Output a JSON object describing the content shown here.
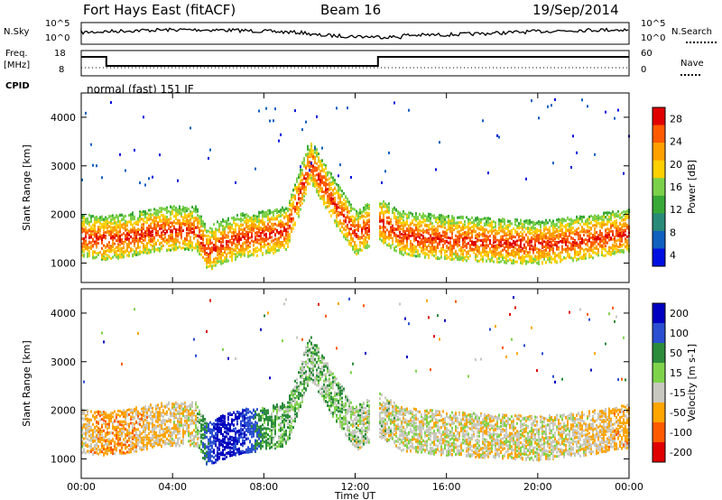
{
  "header": {
    "station": "Fort Hays East (fitACF)",
    "beam": "Beam 16",
    "date": "19/Sep/2014"
  },
  "top_panels": {
    "nsky_label": "N.Sky",
    "nsky_ticks": [
      "10^5",
      "10^0"
    ],
    "nsearch_label": "N.Search",
    "nsearch_ticks": [
      "10^5",
      "10^0"
    ],
    "freq_label": "Freq.",
    "freq_unit": "[MHz]",
    "freq_ticks": [
      "18",
      "8"
    ],
    "nave_label": "Nave",
    "nave_ticks": [
      "60",
      "0"
    ],
    "cpid_label": "CPID",
    "cpid_text": "normal (fast) 151 IF"
  },
  "chart_data": [
    {
      "type": "heatmap",
      "title": "",
      "ylabel": "Slant Range [km]",
      "xlabel": "Time UT",
      "x_ticks": [
        "00:00",
        "04:00",
        "08:00",
        "12:00",
        "16:00",
        "20:00",
        "00:00"
      ],
      "y_ticks": [
        1000,
        2000,
        3000,
        4000
      ],
      "ylim": [
        600,
        4500
      ],
      "colorbar_label": "Power [dB]",
      "colorbar_ticks": [
        28,
        24,
        20,
        16,
        12,
        8,
        4
      ],
      "colorscale": [
        "#e00000",
        "#ff5a00",
        "#ffa000",
        "#ffd000",
        "#7cd14a",
        "#38a838",
        "#2a8a78",
        "#1060c0",
        "#0010e0"
      ],
      "series": [
        {
          "x": [
            0,
            1,
            2,
            3,
            4,
            5,
            5.5,
            6,
            7,
            8,
            9,
            10,
            10.5,
            11,
            12,
            13,
            14,
            16,
            18,
            20,
            22,
            24
          ],
          "y": [
            1550,
            1500,
            1550,
            1650,
            1700,
            1700,
            1250,
            1400,
            1550,
            1600,
            1700,
            3100,
            2700,
            2300,
            1600,
            1900,
            1600,
            1500,
            1450,
            1400,
            1500,
            1650
          ]
        }
      ]
    },
    {
      "type": "heatmap",
      "title": "",
      "ylabel": "Slant Range [km]",
      "xlabel": "Time UT",
      "x_ticks": [
        "00:00",
        "04:00",
        "08:00",
        "12:00",
        "16:00",
        "20:00",
        "00:00"
      ],
      "y_ticks": [
        1000,
        2000,
        3000,
        4000
      ],
      "ylim": [
        600,
        4500
      ],
      "colorbar_label": "Velocity [m s-1]",
      "colorbar_ticks": [
        200,
        100,
        50,
        15,
        -15,
        -50,
        -100,
        -200
      ],
      "colorscale": [
        "#0000c0",
        "#2b4fd0",
        "#2c8c3c",
        "#7fd34a",
        "#c8c8c0",
        "#ffa500",
        "#ff5a00",
        "#e00000"
      ],
      "series": [
        {
          "x": [
            0,
            1,
            2,
            3,
            4,
            5,
            6,
            7,
            8,
            9,
            10,
            11,
            12,
            13,
            14,
            16,
            18,
            20,
            22,
            24
          ],
          "y": [
            -10,
            -40,
            -30,
            -20,
            -10,
            0,
            180,
            150,
            40,
            30,
            20,
            25,
            10,
            5,
            0,
            0,
            -5,
            0,
            -10,
            -30
          ]
        }
      ]
    }
  ],
  "colors": {
    "axis": "#000000",
    "quiet": "#c8c8c0"
  }
}
